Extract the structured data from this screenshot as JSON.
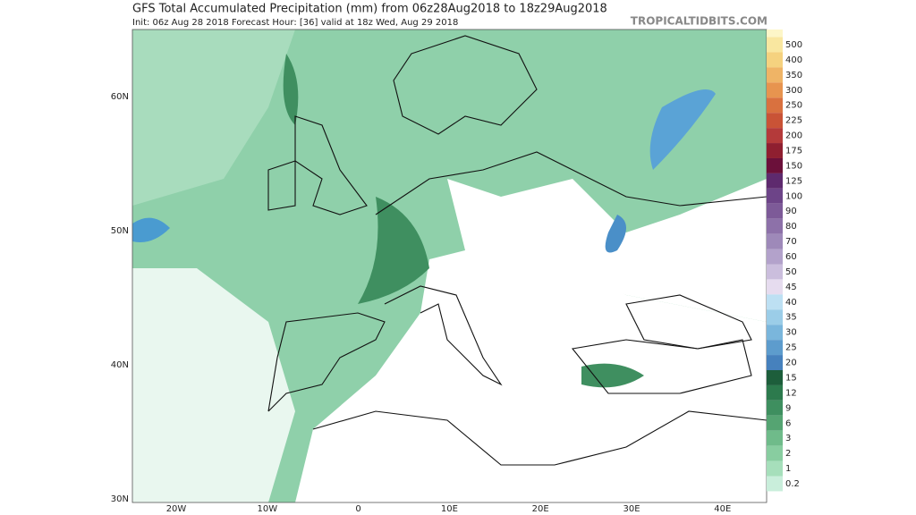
{
  "header": {
    "title": "GFS Total Accumulated Precipitation (mm) from 06z28Aug2018 to 18z29Aug2018",
    "subtitle": "Init: 06z Aug 28 2018   Forecast Hour: [36]   valid at 18z Wed, Aug 29 2018",
    "site": "TROPICALTIDBITS.COM"
  },
  "map": {
    "lat_labels": [
      "60N",
      "50N",
      "40N",
      "30N"
    ],
    "lon_labels": [
      "20W",
      "10W",
      "0",
      "10E",
      "20E",
      "30E",
      "40E"
    ]
  },
  "colorbar": {
    "labels": [
      "500",
      "400",
      "350",
      "300",
      "250",
      "225",
      "200",
      "175",
      "150",
      "125",
      "100",
      "90",
      "80",
      "70",
      "60",
      "50",
      "45",
      "40",
      "35",
      "30",
      "25",
      "20",
      "15",
      "12",
      "9",
      "6",
      "3",
      "2",
      "1",
      "0.2"
    ]
  }
}
